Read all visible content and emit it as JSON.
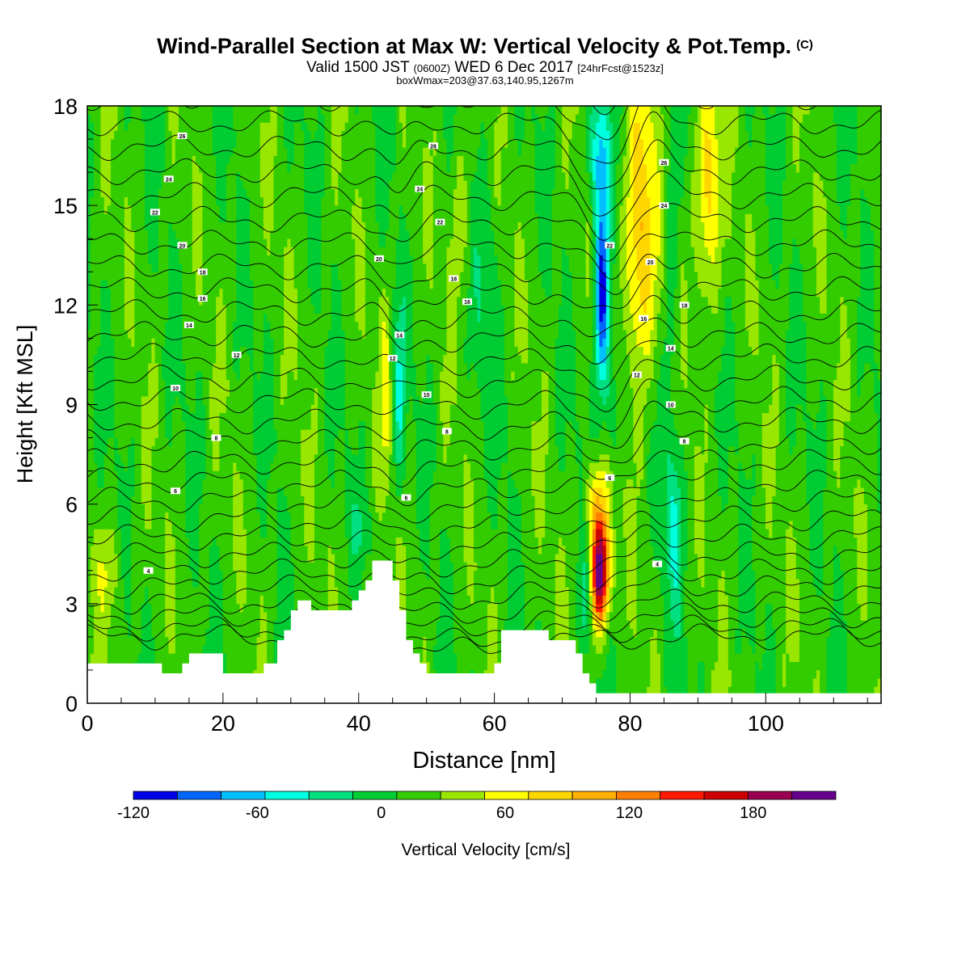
{
  "title": {
    "main": "Wind-Parallel Section at Max W: Vertical Velocity & Pot.Temp.",
    "copyright": "(C)",
    "valid_a": "Valid 1500 JST",
    "valid_z": "(0600Z)",
    "valid_b": "WED 6 Dec 2017",
    "fcst": "[24hrFcst@1523z]",
    "box": "boxWmax=203@37.63,140.95,1267m"
  },
  "chart_data": {
    "type": "heatmap",
    "xlabel": "Distance [nm]",
    "ylabel": "Height [Kft MSL]",
    "xlim": [
      0,
      117
    ],
    "ylim": [
      0,
      18
    ],
    "x_ticks": [
      0,
      20,
      40,
      60,
      80,
      100
    ],
    "y_ticks": [
      0,
      3,
      6,
      9,
      12,
      15,
      18
    ],
    "colorbar": {
      "label": "Vertical Velocity [cm/s]",
      "ticks": [
        -120,
        -60,
        0,
        60,
        120,
        180
      ],
      "min": -120,
      "max": 220,
      "step": 20,
      "colors": [
        "#0000e6",
        "#0066ff",
        "#00bfff",
        "#00ffe0",
        "#00e080",
        "#00cc33",
        "#33cc00",
        "#99e600",
        "#ffff00",
        "#ffd700",
        "#ffb000",
        "#ff7f00",
        "#ff1a00",
        "#cc0000",
        "#990050",
        "#66008c"
      ]
    },
    "vertical_velocity_features": [
      {
        "kind": "updraft",
        "center_x_nm": 75.5,
        "center_height_kft": 4.0,
        "peak_cm_s": 203
      },
      {
        "kind": "downdraft",
        "center_x_nm": 75.8,
        "center_height_kft": 12.5,
        "peak_cm_s": -110
      },
      {
        "kind": "updraft",
        "center_x_nm": 82,
        "center_height_kft": 14.5,
        "peak_cm_s": 80
      },
      {
        "kind": "updraft",
        "center_x_nm": 91,
        "center_height_kft": 15.5,
        "peak_cm_s": 70
      },
      {
        "kind": "downdraft",
        "center_x_nm": 86,
        "center_height_kft": 6.0,
        "peak_cm_s": -40
      },
      {
        "kind": "downdraft",
        "center_x_nm": 46,
        "center_height_kft": 9.0,
        "peak_cm_s": -40
      },
      {
        "kind": "updraft",
        "center_x_nm": 44,
        "center_height_kft": 9.0,
        "peak_cm_s": 40
      }
    ],
    "terrain_profile": {
      "x": [
        0,
        11,
        14,
        15,
        18,
        20,
        25,
        26,
        28,
        29,
        30,
        31,
        33,
        37,
        39,
        40,
        41,
        42,
        44,
        45,
        46,
        47,
        48,
        49,
        50,
        51,
        55,
        60,
        61,
        66,
        68,
        72,
        73,
        74,
        75,
        117
      ],
      "height": [
        1.2,
        0.9,
        1.2,
        1.5,
        1.5,
        0.9,
        0.9,
        1.2,
        1.9,
        2.2,
        2.8,
        3.1,
        2.8,
        2.8,
        3.1,
        3.4,
        3.7,
        4.3,
        4.3,
        3.7,
        2.8,
        1.9,
        1.5,
        1.2,
        0.9,
        0.9,
        0.9,
        1.2,
        2.2,
        2.2,
        1.9,
        1.5,
        0.9,
        0.6,
        0.3,
        0.3
      ]
    },
    "theta_isentropes": {
      "start_C": 2,
      "end_C": 30,
      "interval_C": 1,
      "labels": [
        {
          "text": "26",
          "x": 14,
          "y": 17.1
        },
        {
          "text": "24",
          "x": 12,
          "y": 15.8
        },
        {
          "text": "22",
          "x": 10,
          "y": 14.8
        },
        {
          "text": "20",
          "x": 14,
          "y": 13.8
        },
        {
          "text": "18",
          "x": 17,
          "y": 13.0
        },
        {
          "text": "16",
          "x": 17,
          "y": 12.2
        },
        {
          "text": "14",
          "x": 15,
          "y": 11.4
        },
        {
          "text": "12",
          "x": 22,
          "y": 10.5
        },
        {
          "text": "10",
          "x": 13,
          "y": 9.5
        },
        {
          "text": "8",
          "x": 19,
          "y": 8.0
        },
        {
          "text": "6",
          "x": 13,
          "y": 6.4
        },
        {
          "text": "4",
          "x": 9,
          "y": 4.0
        },
        {
          "text": "28",
          "x": 51,
          "y": 16.8
        },
        {
          "text": "24",
          "x": 49,
          "y": 15.5
        },
        {
          "text": "22",
          "x": 52,
          "y": 14.5
        },
        {
          "text": "20",
          "x": 43,
          "y": 13.4
        },
        {
          "text": "18",
          "x": 54,
          "y": 12.8
        },
        {
          "text": "16",
          "x": 56,
          "y": 12.1
        },
        {
          "text": "14",
          "x": 46,
          "y": 11.1
        },
        {
          "text": "12",
          "x": 45,
          "y": 10.4
        },
        {
          "text": "10",
          "x": 50,
          "y": 9.3
        },
        {
          "text": "8",
          "x": 53,
          "y": 8.2
        },
        {
          "text": "6",
          "x": 47,
          "y": 6.2
        },
        {
          "text": "26",
          "x": 85,
          "y": 16.3
        },
        {
          "text": "24",
          "x": 85,
          "y": 15.0
        },
        {
          "text": "22",
          "x": 77,
          "y": 13.8
        },
        {
          "text": "20",
          "x": 83,
          "y": 13.3
        },
        {
          "text": "18",
          "x": 88,
          "y": 12.0
        },
        {
          "text": "16",
          "x": 82,
          "y": 11.6
        },
        {
          "text": "14",
          "x": 86,
          "y": 10.7
        },
        {
          "text": "12",
          "x": 81,
          "y": 9.9
        },
        {
          "text": "10",
          "x": 86,
          "y": 9.0
        },
        {
          "text": "8",
          "x": 88,
          "y": 7.9
        },
        {
          "text": "6",
          "x": 77,
          "y": 6.8
        },
        {
          "text": "4",
          "x": 84,
          "y": 4.2
        }
      ]
    }
  }
}
